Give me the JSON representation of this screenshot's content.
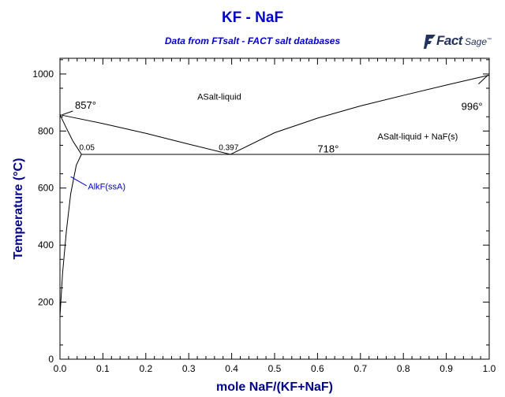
{
  "chart_data": {
    "type": "line",
    "title": "KF - NaF",
    "subtitle": "Data from FTsalt - FACT salt databases",
    "xlabel": "mole NaF/(KF+NaF)",
    "ylabel": "Temperature (°C)",
    "xlim": [
      0,
      1
    ],
    "ylim": [
      0,
      1055
    ],
    "xticks": [
      "0.0",
      "0.1",
      "0.2",
      "0.3",
      "0.4",
      "0.5",
      "0.6",
      "0.7",
      "0.8",
      "0.9",
      "1.0"
    ],
    "yticks": [
      "0",
      "200",
      "400",
      "600",
      "800",
      "1000"
    ],
    "grid": false,
    "series": [
      {
        "x": [
          0,
          0.1,
          0.2,
          0.3,
          0.397
        ],
        "y": [
          857,
          826,
          792,
          754,
          718
        ]
      },
      {
        "x": [
          0.397,
          0.5,
          0.6,
          0.7,
          0.8,
          0.9,
          1.0
        ],
        "y": [
          718,
          794,
          845,
          888,
          925,
          961,
          996
        ]
      },
      {
        "x": [
          0,
          0.015,
          0.03,
          0.045,
          0.05
        ],
        "y": [
          857,
          810,
          765,
          730,
          718
        ]
      },
      {
        "x": [
          0.05,
          1.0
        ],
        "y": [
          718,
          718
        ]
      },
      {
        "x": [
          0,
          0.006,
          0.015,
          0.025,
          0.038,
          0.05
        ],
        "y": [
          150,
          300,
          450,
          580,
          680,
          718
        ]
      }
    ],
    "annotations": [
      {
        "text": "857°",
        "x": 0.035,
        "y": 878
      },
      {
        "text": "996°",
        "x": 0.935,
        "y": 874
      },
      {
        "text": "0.05",
        "x": 0.045,
        "y": 733
      },
      {
        "text": "0.397",
        "x": 0.37,
        "y": 733
      },
      {
        "text": "718°",
        "x": 0.6,
        "y": 725
      },
      {
        "text": "ASalt-liquid",
        "x": 0.32,
        "y": 910
      },
      {
        "text": "ASalt-liquid + NaF(s)",
        "x": 0.74,
        "y": 770
      },
      {
        "text": "AlkF(ssA)",
        "x": 0.065,
        "y": 595
      }
    ]
  },
  "logo": {
    "text_fact": "Fact",
    "text_sage": "Sage",
    "mark": "™",
    "color": "#22335e"
  },
  "colors": {
    "title": "#0000cc",
    "axis_label": "#00008b",
    "curve": "#000000",
    "annotation_blue": "#0000cc"
  }
}
